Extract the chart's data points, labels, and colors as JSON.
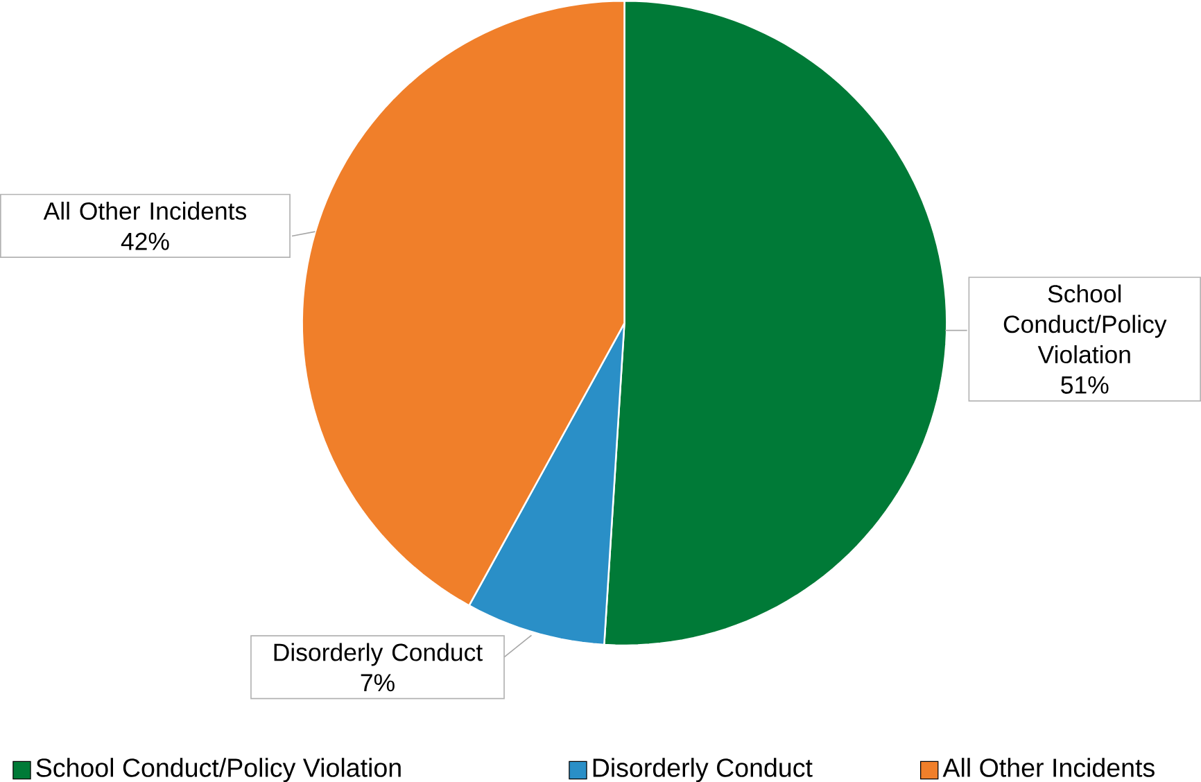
{
  "chart_data": {
    "type": "pie",
    "categories": [
      "School Conduct/Policy Violation",
      "Disorderly Conduct",
      "All Other Incidents"
    ],
    "values": [
      51,
      7,
      42
    ],
    "value_labels": [
      "51%",
      "7%",
      "42%"
    ],
    "colors": [
      "#007a37",
      "#2a8fc7",
      "#f07f2a"
    ],
    "legend": "bottom"
  }
}
